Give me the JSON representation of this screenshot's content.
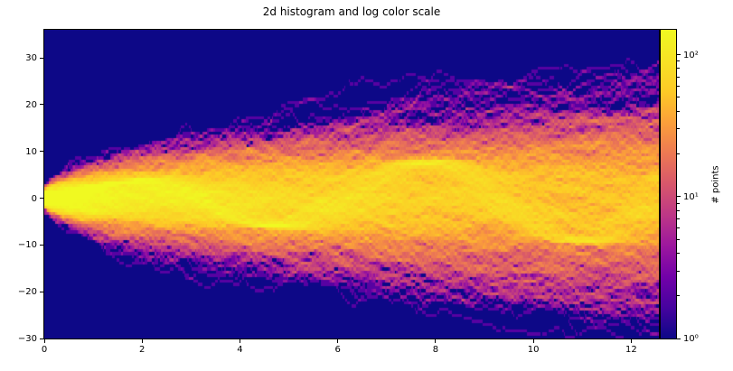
{
  "figure": {
    "title": "2d histogram and log color scale"
  },
  "chart_data": {
    "type": "heatmap",
    "title": "2d histogram and log color scale",
    "xlabel": "",
    "ylabel": "",
    "xlim": [
      0,
      12.566370614359172
    ],
    "ylim": [
      -30,
      36
    ],
    "x_ticks": [
      0,
      2,
      4,
      6,
      8,
      10,
      12
    ],
    "x_tick_labels": [
      "0",
      "2",
      "4",
      "6",
      "8",
      "10",
      "12"
    ],
    "y_ticks": [
      30,
      20,
      10,
      0,
      -10,
      -20,
      -30
    ],
    "y_tick_labels": [
      "30",
      "20",
      "10",
      "0",
      "−10",
      "−20",
      "−30"
    ],
    "grid": false,
    "legend": false,
    "colormap": "plasma",
    "colormap_stops": [
      "#0d0887",
      "#46039f",
      "#7201a8",
      "#9c179e",
      "#bd3786",
      "#d8576b",
      "#ed7953",
      "#fb9f3a",
      "#fdca26",
      "#f7e225",
      "#f0f921"
    ],
    "zero_count_color": "#0d0887",
    "norm": "log",
    "vmin": 1,
    "vmax": 150,
    "bins": [
      400,
      100
    ],
    "colorbar": {
      "label": "# points",
      "position": "right",
      "tick_values": [
        100,
        10,
        1
      ],
      "tick_labels": [
        "10²",
        "10¹",
        "10⁰"
      ],
      "minor_ticks": [
        2,
        3,
        4,
        5,
        6,
        7,
        8,
        9,
        20,
        30,
        40,
        50,
        60,
        70,
        80,
        90
      ]
    },
    "source": {
      "description": "2D histogram (400x100 bins, LogNorm vmax=150) of 1000 time series of 100 points over x=[0,4pi]: 900 unit Gaussian random walks plus 100 hidden sine signals sqrt(t)*(sin(x-phi)+0.05*noise), each series linearly interpolated to 800 fine samples; empty bins drawn in the colormap's lowest color",
      "num_series": 1000,
      "num_points": 100,
      "num_fine": 800,
      "num_signal": 100,
      "signal_noise": 0.05,
      "phase_sigma": 0.39269908,
      "seed": 19680801
    }
  }
}
